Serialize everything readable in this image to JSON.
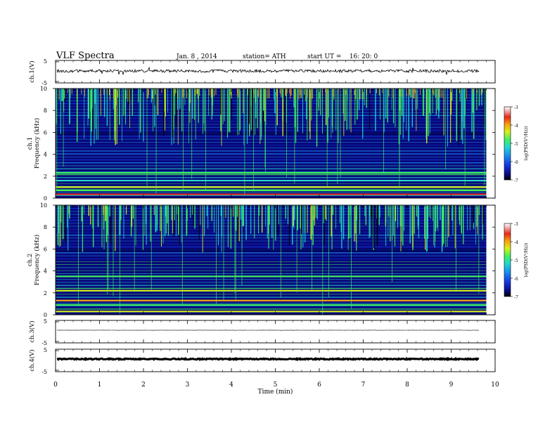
{
  "header": {
    "title": "VLF Spectra",
    "date": "Jan. 8 , 2014",
    "station": "station= ATH",
    "start_ut": "start UT =    16: 20: 0"
  },
  "colors": {
    "spectro_bg": "#08087a",
    "axis": "#000000",
    "colormap": [
      "#000000",
      "#0a0a80",
      "#1238e0",
      "#1a8cf0",
      "#20d8d0",
      "#40f060",
      "#d8f018",
      "#f8a010",
      "#e82818",
      "#f0a8a8",
      "#ffffff"
    ]
  },
  "chart_data": [
    {
      "type": "line",
      "name": "ch.1(V)",
      "ylabel": "ch.1(V)",
      "yticks": [
        "5",
        "-5"
      ],
      "ylim": [
        -5,
        5
      ],
      "xlim": [
        0,
        10
      ],
      "description_level": 0.2
    },
    {
      "type": "heatmap",
      "name": "ch.1 spectrogram",
      "ylabel": "ch.1\nFrequency  (kHz)",
      "ylim": [
        0,
        10
      ],
      "yticks": [
        "0",
        "2",
        "4",
        "6",
        "8",
        "10"
      ],
      "xlim": [
        0,
        10
      ],
      "colorbar": {
        "label": "log(PSD(V²/Hz))",
        "ticks": [
          "-3",
          "-4",
          "-5",
          "-6",
          "-7"
        ],
        "range": [
          -7,
          -3
        ]
      }
    },
    {
      "type": "heatmap",
      "name": "ch.2 spectrogram",
      "ylabel": "ch.2\nFrequency  (kHz)",
      "ylim": [
        0,
        10
      ],
      "yticks": [
        "0",
        "2",
        "4",
        "6",
        "8",
        "10"
      ],
      "xlim": [
        0,
        10
      ],
      "colorbar": {
        "label": "log(PSD(V²/Hz))",
        "ticks": [
          "-3",
          "-4",
          "-5",
          "-6",
          "-7"
        ],
        "range": [
          -7,
          -3
        ]
      }
    },
    {
      "type": "line",
      "name": "ch.3(V)",
      "ylabel": "ch.3(V)",
      "yticks": [
        "5",
        "-5"
      ],
      "ylim": [
        -5,
        5
      ],
      "xlim": [
        0,
        10
      ]
    },
    {
      "type": "line",
      "name": "ch.4(V)",
      "ylabel": "ch.4(V)",
      "yticks": [
        "5",
        "-5"
      ],
      "ylim": [
        -5,
        5
      ],
      "xlim": [
        0,
        10
      ]
    }
  ],
  "xaxis": {
    "label": "Time  (min)",
    "ticks": [
      "0",
      "1",
      "2",
      "3",
      "4",
      "5",
      "6",
      "7",
      "8",
      "9",
      "10"
    ],
    "xlim": [
      0,
      10
    ],
    "data_end": 9.8
  }
}
